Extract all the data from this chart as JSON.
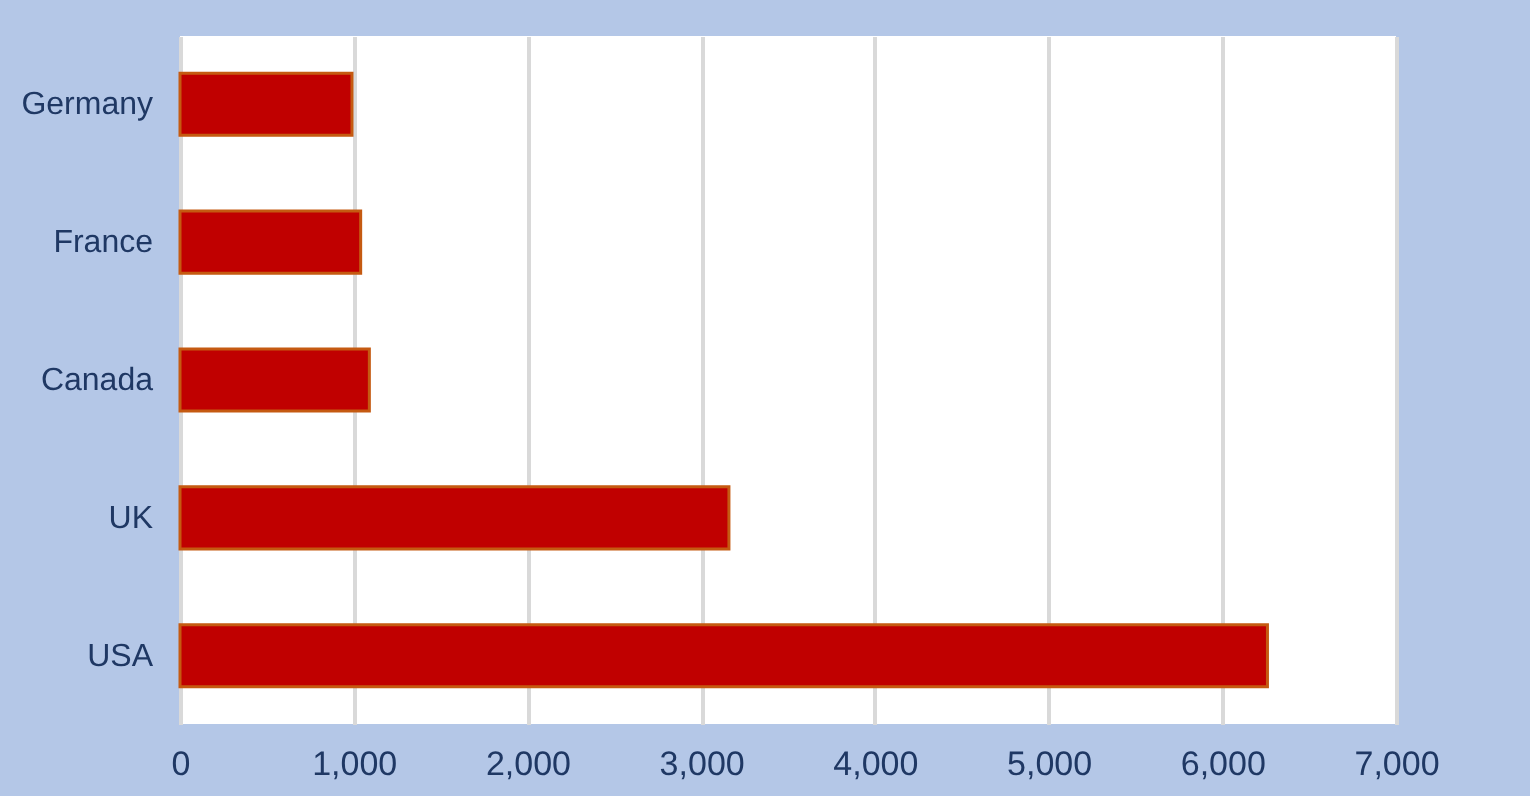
{
  "chart_data": {
    "type": "bar",
    "orientation": "horizontal",
    "categories": [
      "Germany",
      "France",
      "Canada",
      "UK",
      "USA"
    ],
    "values": [
      990,
      1040,
      1090,
      3160,
      6260
    ],
    "color": "#c00000",
    "xlim": [
      0,
      7000
    ],
    "xticks": [
      {
        "value": 0,
        "label": "0"
      },
      {
        "value": 1000,
        "label": "1,000"
      },
      {
        "value": 2000,
        "label": "2,000"
      },
      {
        "value": 3000,
        "label": "3,000"
      },
      {
        "value": 4000,
        "label": "4,000"
      },
      {
        "value": 5000,
        "label": "5,000"
      },
      {
        "value": 6000,
        "label": "6,000"
      },
      {
        "value": 7000,
        "label": "7,000"
      }
    ],
    "grid": "x"
  }
}
